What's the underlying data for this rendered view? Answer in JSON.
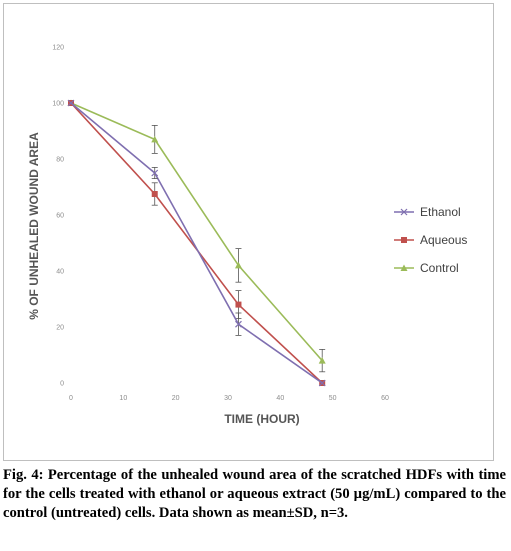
{
  "chart_data": {
    "type": "line",
    "xlabel": "TIME (HOUR)",
    "ylabel": "% OF UNHEALED WOUND AREA",
    "xlim": [
      0,
      60
    ],
    "ylim": [
      0,
      120
    ],
    "xticks": [
      "0",
      "10",
      "20",
      "30",
      "40",
      "50",
      "60"
    ],
    "yticks": [
      "0",
      "20",
      "40",
      "60",
      "80",
      "100",
      "120"
    ],
    "grid": false,
    "legend_position": "right",
    "x": [
      0,
      16,
      32,
      48
    ],
    "series": [
      {
        "name": "Ethanol",
        "values": [
          100,
          75,
          21,
          0
        ],
        "errors": [
          0,
          2,
          4,
          0
        ],
        "color": "#7f6fb0",
        "marker": "x"
      },
      {
        "name": "Aqueous",
        "values": [
          100,
          67.5,
          28,
          0
        ],
        "errors": [
          0,
          4,
          5,
          0
        ],
        "color": "#c0504d",
        "marker": "square"
      },
      {
        "name": "Control",
        "values": [
          100,
          87,
          42,
          8
        ],
        "errors": [
          0,
          5,
          6,
          4
        ],
        "color": "#9bbb59",
        "marker": "triangle"
      }
    ]
  },
  "caption": "Fig. 4: Percentage of the unhealed wound area of the scratched HDFs with time for the cells treated with ethanol or aqueous extract (50 µg/mL) compared to the control (untreated) cells. Data shown as mean±SD, n=3."
}
